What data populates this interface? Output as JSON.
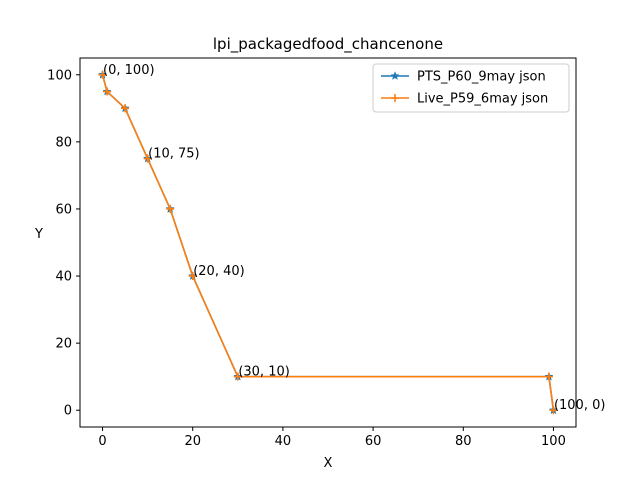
{
  "chart_data": {
    "type": "line",
    "title": "lpi_packagedfood_chancenone",
    "xlabel": "X",
    "ylabel": "Y",
    "xlim": [
      -5,
      105
    ],
    "ylim": [
      -5,
      105
    ],
    "xticks": [
      0,
      20,
      40,
      60,
      80,
      100
    ],
    "yticks": [
      0,
      20,
      40,
      60,
      80,
      100
    ],
    "grid": false,
    "legend_position": "top-right",
    "series": [
      {
        "name": "PTS_P60_9may json",
        "color": "#1f77b4",
        "marker": "star",
        "x": [
          0,
          1,
          5,
          10,
          15,
          20,
          30,
          99,
          100
        ],
        "y": [
          100,
          95,
          90,
          75,
          60,
          40,
          10,
          10,
          0
        ]
      },
      {
        "name": "Live_P59_6may json",
        "color": "#ff7f0e",
        "marker": "plus",
        "x": [
          0,
          1,
          5,
          10,
          15,
          20,
          30,
          99,
          100
        ],
        "y": [
          100,
          95,
          90,
          75,
          60,
          40,
          10,
          10,
          0
        ]
      }
    ],
    "annotations": [
      {
        "text": "(0, 100)",
        "x": 0,
        "y": 100
      },
      {
        "text": "(10, 75)",
        "x": 10,
        "y": 75
      },
      {
        "text": "(20, 40)",
        "x": 20,
        "y": 40
      },
      {
        "text": "(30, 10)",
        "x": 30,
        "y": 10
      },
      {
        "text": "(100, 0)",
        "x": 100,
        "y": 0
      }
    ]
  }
}
